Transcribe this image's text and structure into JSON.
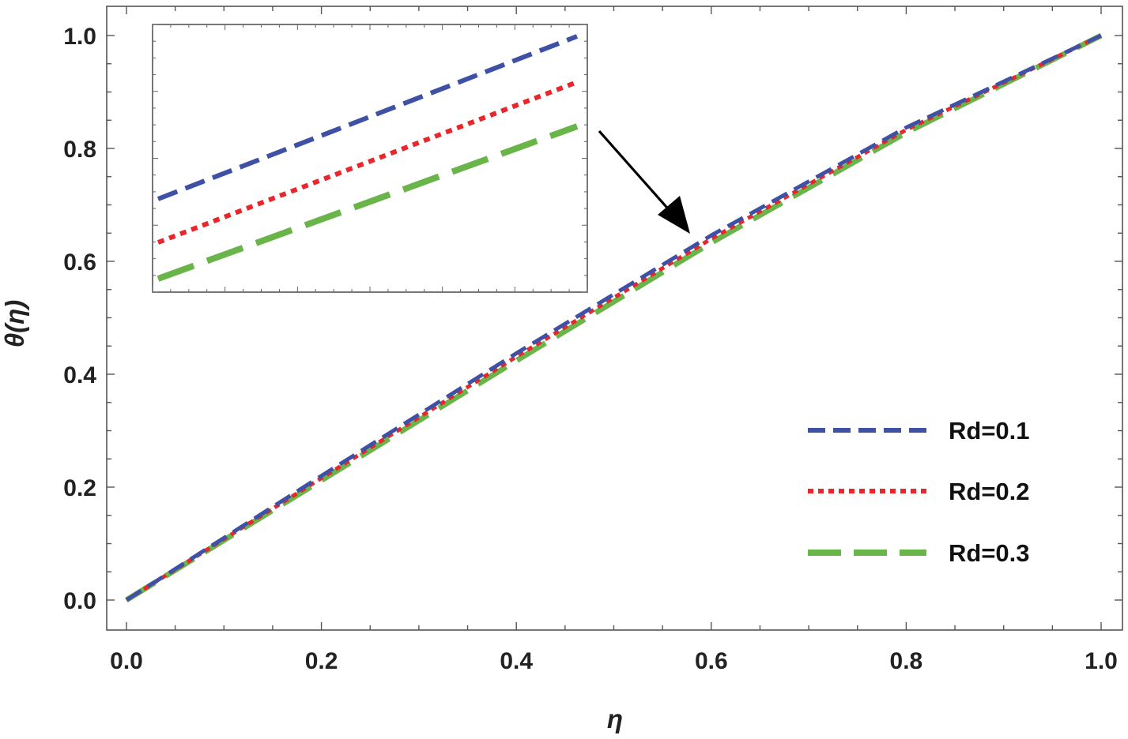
{
  "chart_data": {
    "type": "line",
    "xlabel": "η",
    "ylabel": "θ(η)",
    "xlim": [
      0.0,
      1.0
    ],
    "ylim": [
      -0.05,
      1.05
    ],
    "x_ticks": [
      "0.0",
      "0.2",
      "0.4",
      "0.6",
      "0.8",
      "1.0"
    ],
    "y_ticks": [
      "0.0",
      "0.2",
      "0.4",
      "0.6",
      "0.8",
      "1.0"
    ],
    "grid": false,
    "legend_position": "bottom-right",
    "x": [
      0.0,
      0.2,
      0.4,
      0.6,
      0.8,
      1.0
    ],
    "series": [
      {
        "name": "Rd=0.1",
        "color": "#3f51a5",
        "style": "dashed",
        "values": [
          0.0,
          0.22,
          0.437,
          0.646,
          0.837,
          1.0
        ]
      },
      {
        "name": "Rd=0.2",
        "color": "#e8262b",
        "style": "dotted",
        "values": [
          0.0,
          0.216,
          0.431,
          0.64,
          0.833,
          1.0
        ]
      },
      {
        "name": "Rd=0.3",
        "color": "#6ab54a",
        "style": "long-dashed",
        "values": [
          0.0,
          0.212,
          0.424,
          0.633,
          0.828,
          1.0
        ]
      }
    ],
    "inset": {
      "type": "line",
      "description_note": "zoomed view near η≈0.6",
      "lines": [
        "Rd=0.1",
        "Rd=0.2",
        "Rd=0.3"
      ]
    },
    "annotation": "arrow pointing from inset to curves near η≈0.6"
  }
}
